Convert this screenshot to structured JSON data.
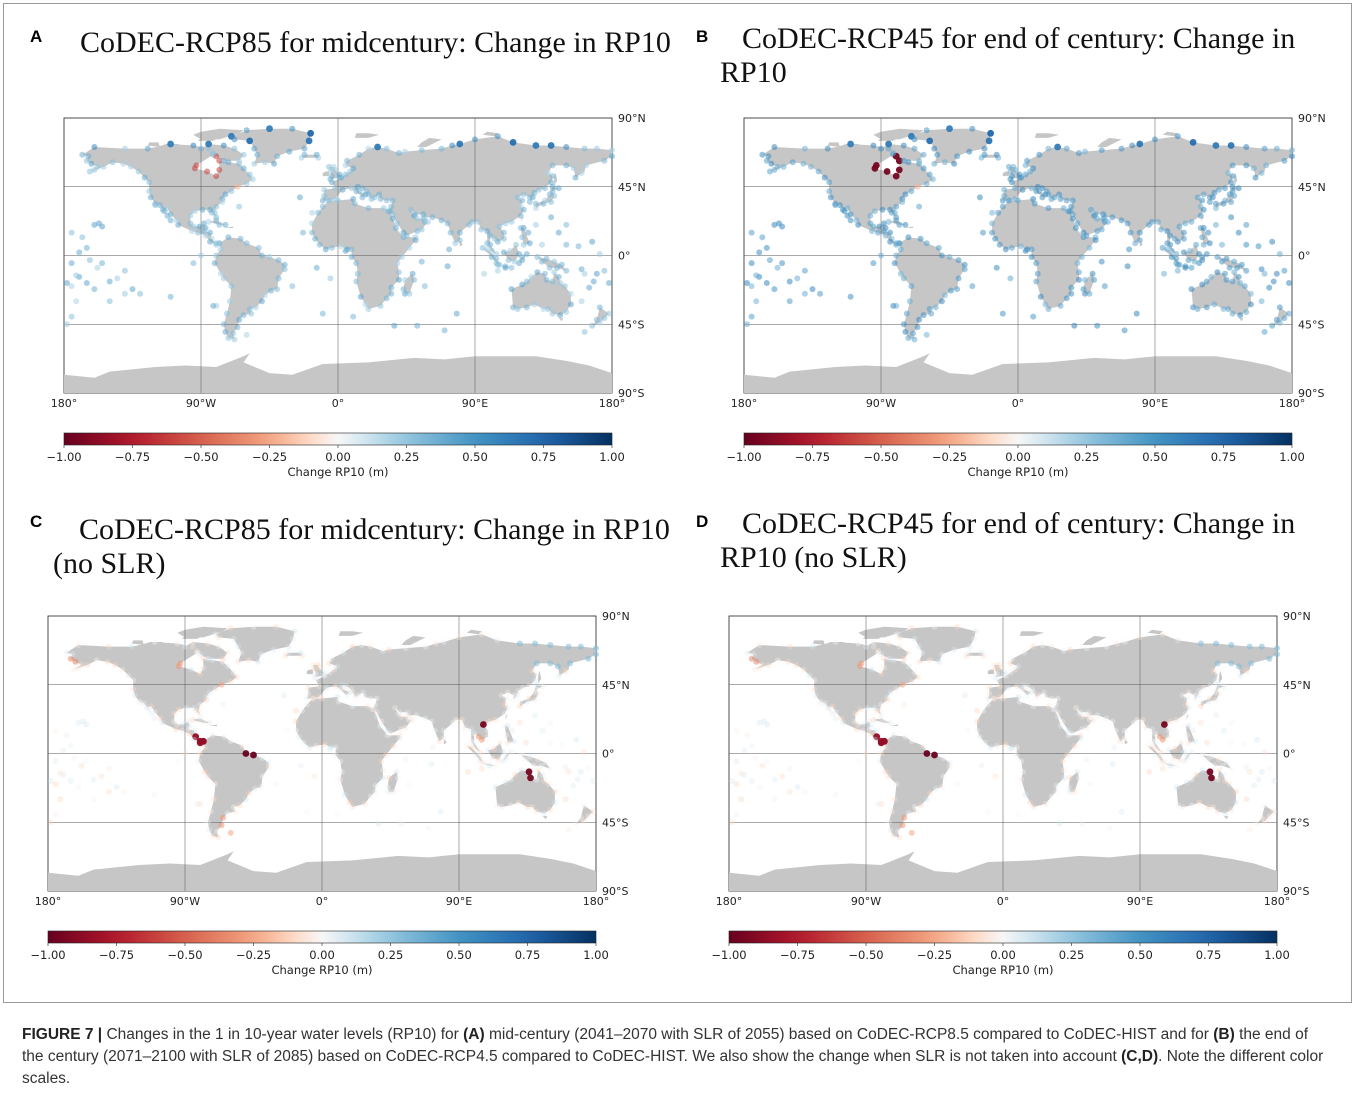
{
  "figure": {
    "panels": [
      {
        "id": "A",
        "letter": "A",
        "title": "CoDEC-RCP85 for midcentury: Change in RP10",
        "variant": "full-slr-hudson"
      },
      {
        "id": "B",
        "letter": "B",
        "title": "CoDEC-RCP45 for end of century: Change in RP10",
        "variant": "full-slr-strong"
      },
      {
        "id": "C",
        "letter": "C",
        "title": "CoDEC-RCP85 for midcentury: Change in RP10 (no SLR)",
        "variant": "no-slr"
      },
      {
        "id": "D",
        "letter": "D",
        "title": "CoDEC-RCP45 for end of century: Change in RP10 (no SLR)",
        "variant": "no-slr"
      }
    ],
    "caption": {
      "label": "FIGURE 7 |",
      "segments": [
        {
          "text": " Changes in the 1 in 10-year water levels (RP10) for ",
          "bold": false
        },
        {
          "text": "(A)",
          "bold": true
        },
        {
          "text": " mid-century (2041–2070 with SLR of 2055) based on CoDEC-RCP8.5 compared to CoDEC-HIST and for ",
          "bold": false
        },
        {
          "text": "(B)",
          "bold": true
        },
        {
          "text": " the end of the century (2071–2100 with SLR of 2085) based on CoDEC-RCP4.5 compared to CoDEC-HIST. We also show the change when SLR is not taken into account ",
          "bold": false
        },
        {
          "text": "(C,D)",
          "bold": true
        },
        {
          "text": ". Note the different color scales.",
          "bold": false
        }
      ]
    }
  },
  "chart_data": [
    {
      "type": "map",
      "panel": "A",
      "title": "CoDEC-RCP85 for midcentury: Change in RP10",
      "x_ticks": [
        "180°",
        "90°W",
        "0°",
        "90°E",
        "180°"
      ],
      "y_ticks": [
        "90°N",
        "45°N",
        "0°",
        "45°S",
        "90°S"
      ],
      "colorbar": {
        "label": "Change RP10 (m)",
        "ticks": [
          "−1.00",
          "−0.75",
          "−0.50",
          "−0.25",
          "0.00",
          "0.25",
          "0.50",
          "0.75",
          "1.00"
        ],
        "range": [
          -1.0,
          1.0
        ],
        "colormap": "RdBu"
      }
    },
    {
      "type": "map",
      "panel": "B",
      "title": "CoDEC-RCP45 for end of century: Change in RP10",
      "x_ticks": [
        "180°",
        "90°W",
        "0°",
        "90°E",
        "180°"
      ],
      "y_ticks": [
        "90°N",
        "45°N",
        "0°",
        "45°S",
        "90°S"
      ],
      "colorbar": {
        "label": "Change RP10 (m)",
        "ticks": [
          "−1.00",
          "−0.75",
          "−0.50",
          "−0.25",
          "0.00",
          "0.25",
          "0.50",
          "0.75",
          "1.00"
        ],
        "range": [
          -1.0,
          1.0
        ],
        "colormap": "RdBu"
      }
    },
    {
      "type": "map",
      "panel": "C",
      "title": "CoDEC-RCP85 for midcentury: Change in RP10 (no SLR)",
      "x_ticks": [
        "180°",
        "90°W",
        "0°",
        "90°E",
        "180°"
      ],
      "y_ticks": [
        "90°N",
        "45°N",
        "0°",
        "45°S",
        "90°S"
      ],
      "colorbar": {
        "label": "Change RP10 (m)",
        "ticks": [
          "−1.00",
          "−0.75",
          "−0.50",
          "−0.25",
          "0.00",
          "0.25",
          "0.50",
          "0.75",
          "1.00"
        ],
        "range": [
          -1.0,
          1.0
        ],
        "colormap": "RdBu"
      }
    },
    {
      "type": "map",
      "panel": "D",
      "title": "CoDEC-RCP45 for end of century: Change in RP10 (no SLR)",
      "x_ticks": [
        "180°",
        "90°W",
        "0°",
        "90°E",
        "180°"
      ],
      "y_ticks": [
        "90°N",
        "45°N",
        "0°",
        "45°S",
        "90°S"
      ],
      "colorbar": {
        "label": "Change RP10 (m)",
        "ticks": [
          "−1.00",
          "−0.75",
          "−0.50",
          "−0.25",
          "0.00",
          "0.25",
          "0.50",
          "0.75",
          "1.00"
        ],
        "range": [
          -1.0,
          1.0
        ],
        "colormap": "RdBu"
      }
    }
  ]
}
